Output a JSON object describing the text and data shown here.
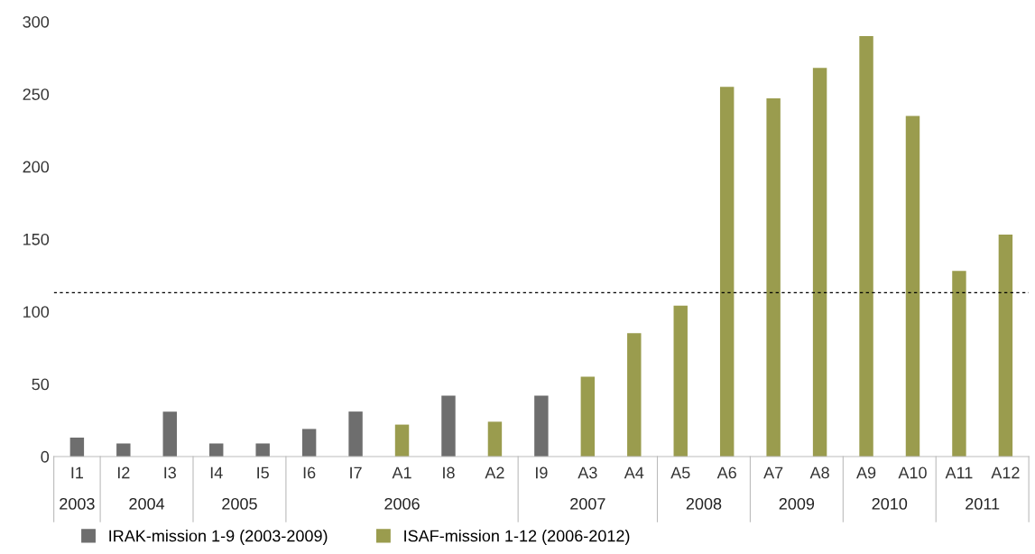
{
  "chart_data": {
    "type": "bar",
    "categories": [
      "I1",
      "I2",
      "I3",
      "I4",
      "I5",
      "I6",
      "I7",
      "A1",
      "I8",
      "A2",
      "I9",
      "A3",
      "A4",
      "A5",
      "A6",
      "A7",
      "A8",
      "A9",
      "A10",
      "A11",
      "A12"
    ],
    "series": [
      {
        "name": "IRAK-mission 1-9 (2003-2009)",
        "color": "#6e6e6e",
        "values": [
          13,
          9,
          31,
          9,
          9,
          19,
          31,
          null,
          42,
          null,
          42,
          null,
          null,
          null,
          null,
          null,
          null,
          null,
          null,
          null,
          null
        ]
      },
      {
        "name": "ISAF-mission 1-12 (2006-2012)",
        "color": "#9a9c4e",
        "values": [
          null,
          null,
          null,
          null,
          null,
          null,
          null,
          22,
          null,
          24,
          null,
          55,
          85,
          104,
          255,
          247,
          268,
          290,
          235,
          128,
          153
        ]
      }
    ],
    "ylim": [
      0,
      300
    ],
    "yticks": [
      0,
      50,
      100,
      150,
      200,
      250,
      300
    ],
    "ref_lines": [
      {
        "axis": "y",
        "value": 113,
        "color": "#000000",
        "line_style": "dashed"
      }
    ],
    "annotations": [
      "2003",
      "2004",
      "2005",
      "2006",
      "2007",
      "2008",
      "2009",
      "2010",
      "2011"
    ],
    "grid": false,
    "legend": "bottom left"
  }
}
